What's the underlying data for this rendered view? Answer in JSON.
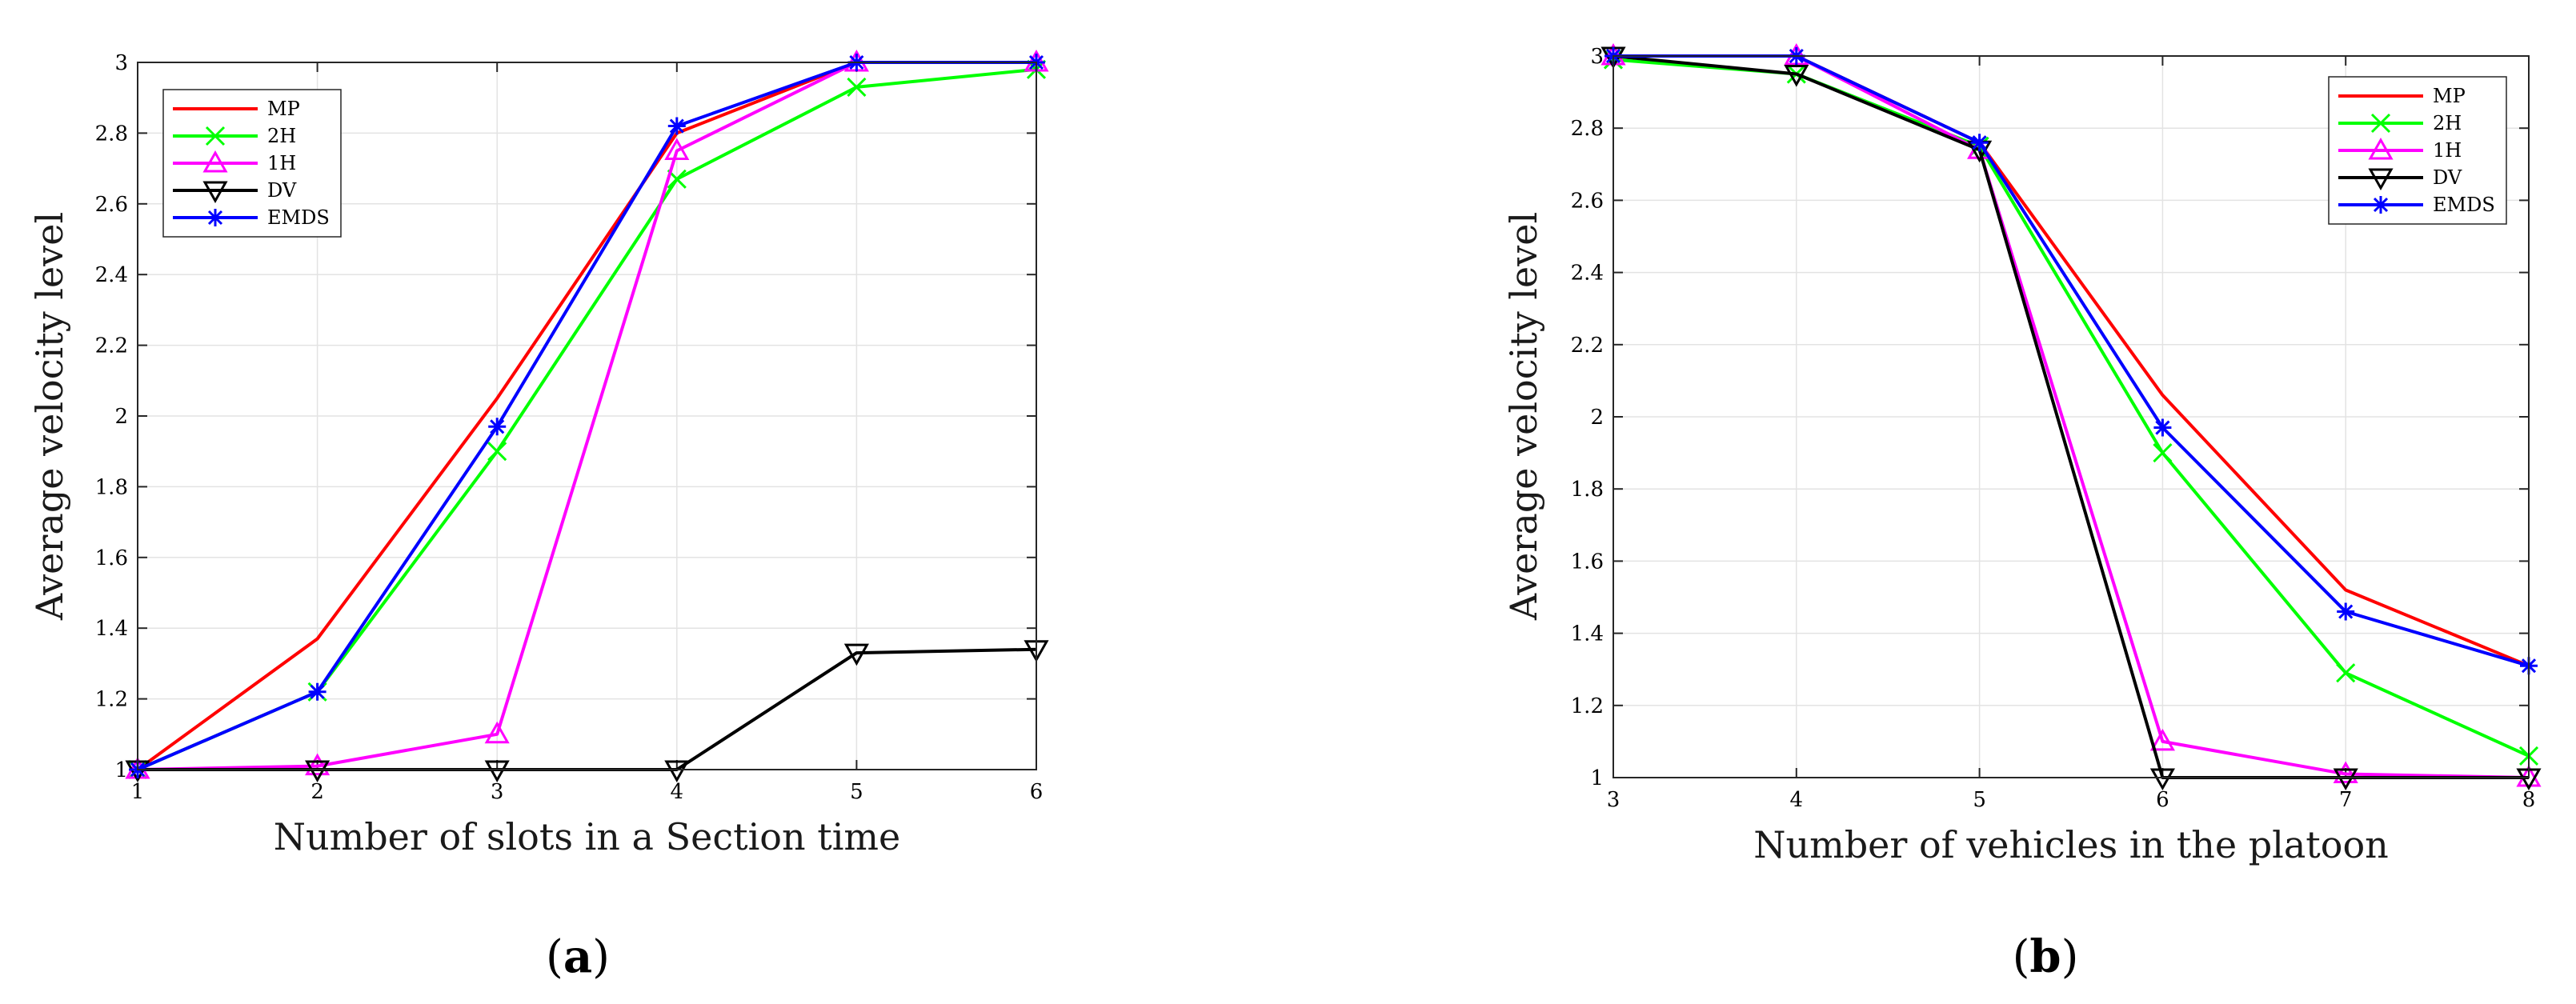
{
  "chart_data": [
    {
      "type": "line",
      "panel_label": "a",
      "xlabel": "Number of slots in a Section time",
      "ylabel": "Average velocity level",
      "x": [
        1,
        2,
        3,
        4,
        5,
        6
      ],
      "xlim": [
        1,
        6
      ],
      "ylim": [
        1,
        3
      ],
      "xticks": [
        "1",
        "2",
        "3",
        "4",
        "5",
        "6"
      ],
      "yticks": [
        "1",
        "1.2",
        "1.4",
        "1.6",
        "1.8",
        "2",
        "2.2",
        "2.4",
        "2.6",
        "2.8",
        "3"
      ],
      "grid": true,
      "legend_position": "top-left",
      "series": [
        {
          "name": "MP",
          "color": "#ff0000",
          "marker": "none",
          "values": [
            1.0,
            1.37,
            2.05,
            2.8,
            3.0,
            3.0
          ]
        },
        {
          "name": "2H",
          "color": "#00ff00",
          "marker": "x",
          "values": [
            1.0,
            1.22,
            1.9,
            2.67,
            2.93,
            2.98
          ]
        },
        {
          "name": "1H",
          "color": "#ff00ff",
          "marker": "triangle-up",
          "values": [
            1.0,
            1.01,
            1.1,
            2.75,
            3.0,
            3.0
          ]
        },
        {
          "name": "DV",
          "color": "#000000",
          "marker": "triangle-down",
          "values": [
            1.0,
            1.0,
            1.0,
            1.0,
            1.33,
            1.34
          ]
        },
        {
          "name": "EMDS",
          "color": "#0000ff",
          "marker": "asterisk",
          "values": [
            1.0,
            1.22,
            1.97,
            2.82,
            3.0,
            3.0
          ]
        }
      ]
    },
    {
      "type": "line",
      "panel_label": "b",
      "xlabel": "Number of vehicles in the platoon",
      "ylabel": "Average velocity level",
      "x": [
        3,
        4,
        5,
        6,
        7,
        8
      ],
      "xlim": [
        3,
        8
      ],
      "ylim": [
        1,
        3
      ],
      "xticks": [
        "3",
        "4",
        "5",
        "6",
        "7",
        "8"
      ],
      "yticks": [
        "1",
        "1.2",
        "1.4",
        "1.6",
        "1.8",
        "2",
        "2.2",
        "2.4",
        "2.6",
        "2.8",
        "3"
      ],
      "grid": true,
      "legend_position": "top-right",
      "series": [
        {
          "name": "MP",
          "color": "#ff0000",
          "marker": "none",
          "values": [
            3.0,
            3.0,
            2.76,
            2.06,
            1.52,
            1.31
          ]
        },
        {
          "name": "2H",
          "color": "#00ff00",
          "marker": "x",
          "values": [
            2.99,
            2.95,
            2.75,
            1.9,
            1.29,
            1.06
          ]
        },
        {
          "name": "1H",
          "color": "#ff00ff",
          "marker": "triangle-up",
          "values": [
            3.0,
            3.0,
            2.74,
            1.1,
            1.01,
            1.0
          ]
        },
        {
          "name": "DV",
          "color": "#000000",
          "marker": "triangle-down",
          "values": [
            3.0,
            2.95,
            2.74,
            1.0,
            1.0,
            1.0
          ]
        },
        {
          "name": "EMDS",
          "color": "#0000ff",
          "marker": "asterisk",
          "values": [
            3.0,
            3.0,
            2.76,
            1.97,
            1.46,
            1.31
          ]
        }
      ]
    }
  ]
}
